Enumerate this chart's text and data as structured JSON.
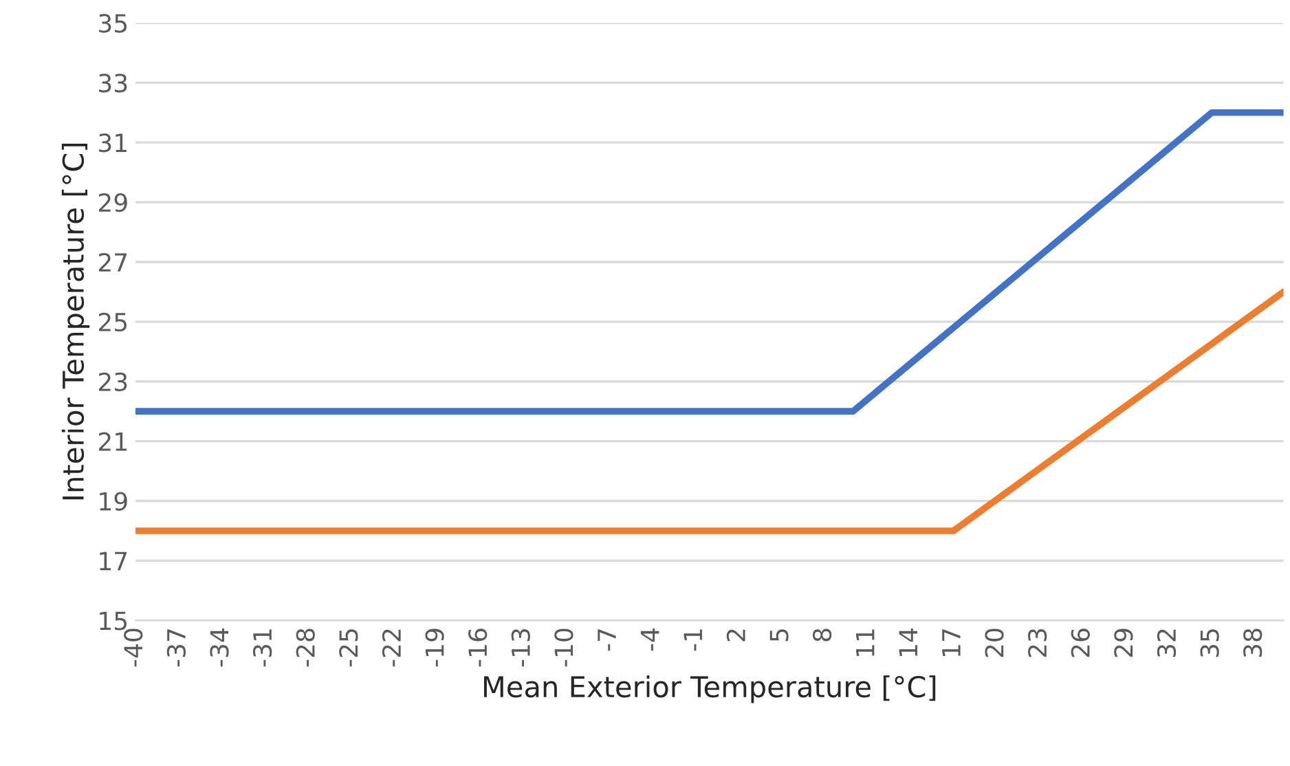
{
  "chart_data": {
    "type": "line",
    "xlabel": "Mean Exterior Temperature [°C]",
    "ylabel": "Interior Temperature [°C]",
    "xlim": [
      -40,
      40
    ],
    "xticks": [
      -40,
      -37,
      -34,
      -31,
      -28,
      -25,
      -22,
      -19,
      -16,
      -13,
      -10,
      -7,
      -4,
      -1,
      2,
      5,
      8,
      11,
      14,
      17,
      20,
      23,
      26,
      29,
      32,
      35,
      38
    ],
    "ylim": [
      15,
      35
    ],
    "yticks": [
      15,
      17,
      19,
      21,
      23,
      25,
      27,
      29,
      31,
      33,
      35
    ],
    "grid": "y",
    "marker": "none",
    "line_style": "solid",
    "series": [
      {
        "color": "#4472c4",
        "x": [
          -40,
          10,
          35,
          40
        ],
        "values": [
          22,
          22,
          32,
          32
        ]
      },
      {
        "color": "#ed7d31",
        "x": [
          -40,
          17,
          40
        ],
        "values": [
          18,
          18,
          26
        ]
      }
    ]
  }
}
